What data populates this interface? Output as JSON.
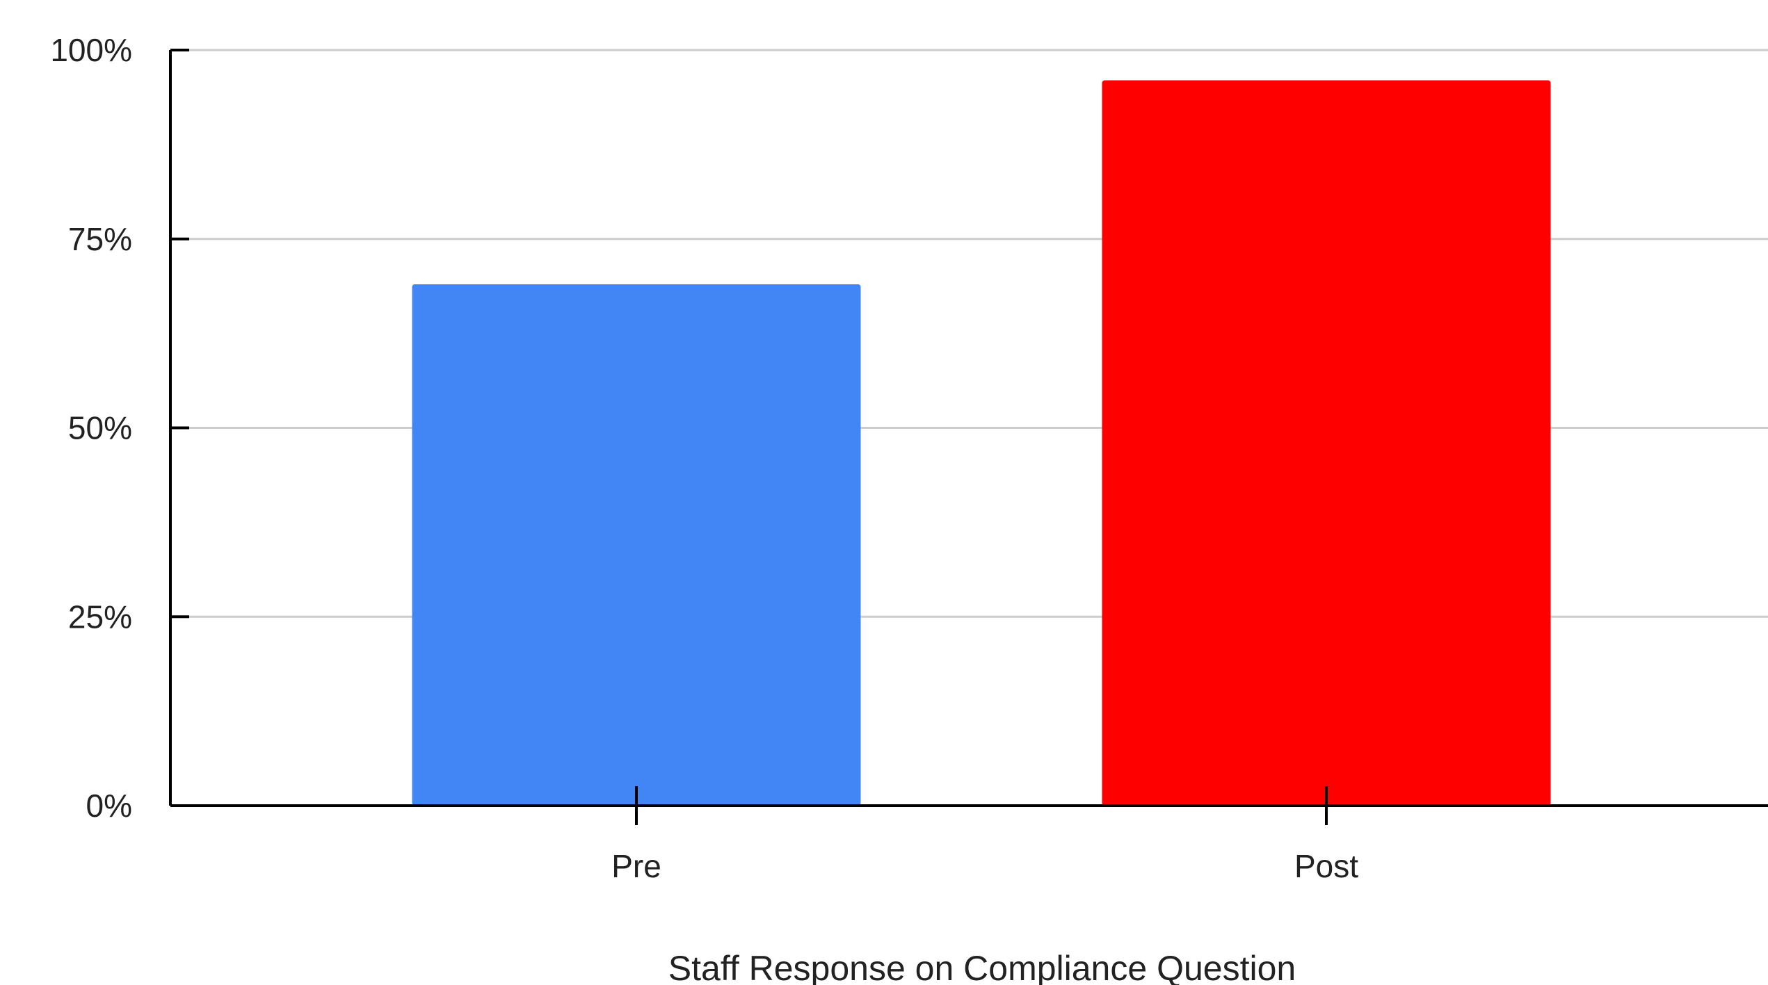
{
  "chart_data": {
    "type": "bar",
    "categories": [
      "Pre",
      "Post"
    ],
    "values": [
      69,
      96
    ],
    "colors": [
      "#4285f4",
      "#ff0000"
    ],
    "xlabel": "Staff Response on Compliance Question",
    "ylabel": "",
    "ylim": [
      0,
      100
    ],
    "yticks": [
      0,
      25,
      50,
      75,
      100
    ],
    "ytick_labels": [
      "0%",
      "25%",
      "50%",
      "75%",
      "100%"
    ],
    "grid": true,
    "legend": "none"
  }
}
